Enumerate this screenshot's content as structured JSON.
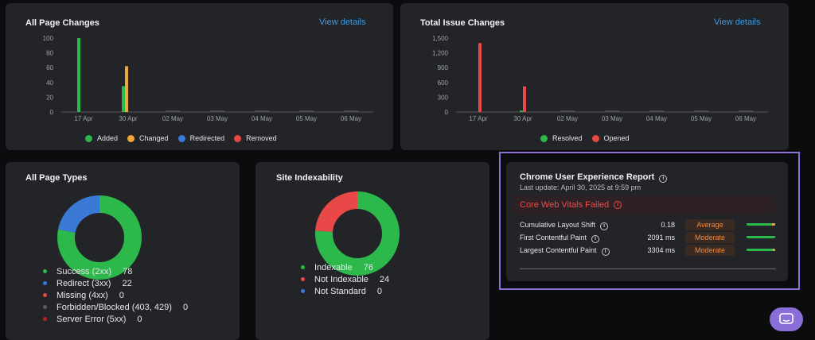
{
  "page_changes": {
    "title": "All Page Changes",
    "view_link": "View details",
    "chart_data": {
      "type": "bar",
      "title": "All Page Changes",
      "categories": [
        "17 Apr",
        "30 Apr",
        "02 May",
        "03 May",
        "04 May",
        "05 May",
        "06 May"
      ],
      "y_ticks": [
        "0",
        "20",
        "40",
        "60",
        "80",
        "100"
      ],
      "ylim": [
        0,
        100
      ],
      "series": [
        {
          "name": "Added",
          "color": "#2db84c",
          "values": [
            100,
            35,
            0,
            0,
            0,
            0,
            0
          ]
        },
        {
          "name": "Changed",
          "color": "#f0a83a",
          "values": [
            0,
            62,
            0,
            0,
            0,
            0,
            0
          ]
        },
        {
          "name": "Redirected",
          "color": "#3a79d6",
          "values": [
            0,
            0,
            0,
            0,
            0,
            0,
            0
          ]
        },
        {
          "name": "Removed",
          "color": "#e84848",
          "values": [
            0,
            0,
            0,
            0,
            0,
            0,
            0
          ]
        }
      ]
    }
  },
  "issue_changes": {
    "title": "Total Issue Changes",
    "view_link": "View details",
    "chart_data": {
      "type": "bar",
      "title": "Total Issue Changes",
      "categories": [
        "17 Apr",
        "30 Apr",
        "02 May",
        "03 May",
        "04 May",
        "05 May",
        "06 May"
      ],
      "y_ticks": [
        "0",
        "300",
        "600",
        "900",
        "1,200",
        "1,500"
      ],
      "ylim": [
        0,
        1500
      ],
      "series": [
        {
          "name": "Resolved",
          "color": "#2db84c",
          "values": [
            0,
            30,
            0,
            0,
            0,
            0,
            0
          ]
        },
        {
          "name": "Opened",
          "color": "#e84848",
          "values": [
            1400,
            520,
            0,
            0,
            0,
            0,
            0
          ]
        }
      ]
    }
  },
  "page_types": {
    "title": "All Page Types",
    "chart_data": {
      "type": "pie",
      "title": "All Page Types",
      "slices": [
        {
          "label": "Success (2xx)",
          "value": 78,
          "color": "#2db84c"
        },
        {
          "label": "Redirect (3xx)",
          "value": 22,
          "color": "#3a79d6"
        },
        {
          "label": "Missing (4xx)",
          "value": 0,
          "color": "#e84848"
        },
        {
          "label": "Forbidden/Blocked (403, 429)",
          "value": 0,
          "color": "#5a5c60"
        },
        {
          "label": "Server Error (5xx)",
          "value": 0,
          "color": "#b3261e"
        }
      ]
    }
  },
  "indexability": {
    "title": "Site Indexability",
    "chart_data": {
      "type": "pie",
      "title": "Site Indexability",
      "slices": [
        {
          "label": "Indexable",
          "value": 76,
          "color": "#2db84c"
        },
        {
          "label": "Not Indexable",
          "value": 24,
          "color": "#e84848"
        },
        {
          "label": "Not Standard",
          "value": 0,
          "color": "#3a79d6"
        }
      ]
    }
  },
  "crux": {
    "title": "Chrome User Experience Report",
    "last_update": "Last update: April 30, 2025 at 9:59 pm",
    "status": "Core Web Vitals Failed",
    "metrics": [
      {
        "name": "Cumulative Layout Shift",
        "value": "0.18",
        "rating": "Average",
        "good_fraction": 0.9
      },
      {
        "name": "First Contentful Paint",
        "value": "2091 ms",
        "rating": "Moderate",
        "good_fraction": 1.0
      },
      {
        "name": "Largest Contentful Paint",
        "value": "3304 ms",
        "rating": "Moderate",
        "good_fraction": 0.92
      }
    ]
  }
}
